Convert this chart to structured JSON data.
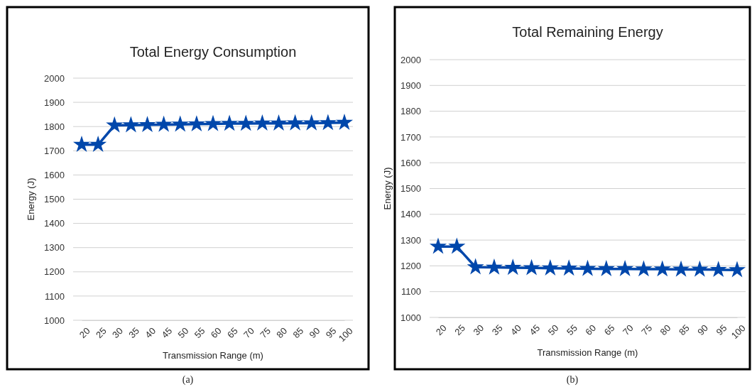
{
  "chart_data": [
    {
      "type": "line",
      "title": "Total Energy Consumption",
      "xlabel": "Transmission Range (m)",
      "ylabel": "Energy (J)",
      "annotations": [
        "(a)"
      ],
      "categories": [
        "20",
        "25",
        "30",
        "35",
        "40",
        "45",
        "50",
        "55",
        "60",
        "65",
        "70",
        "75",
        "80",
        "85",
        "90",
        "95",
        "100"
      ],
      "series": [
        {
          "color": "#0047ab",
          "values": [
            1725,
            1725,
            1805,
            1806,
            1807,
            1808,
            1809,
            1810,
            1811,
            1812,
            1812,
            1813,
            1813,
            1814,
            1814,
            1815,
            1816
          ]
        }
      ],
      "ylim": [
        1000,
        2000
      ],
      "yticks": [
        1000,
        1100,
        1200,
        1300,
        1400,
        1500,
        1600,
        1700,
        1800,
        1900,
        2000
      ],
      "grid": "y",
      "marker": "star",
      "line_style": "solid"
    },
    {
      "type": "line",
      "title": "Total Remaining Energy",
      "xlabel": "Transmission Range (m)",
      "ylabel": "Energy (J)",
      "annotations": [
        "(b)"
      ],
      "categories": [
        "20",
        "25",
        "30",
        "35",
        "40",
        "45",
        "50",
        "55",
        "60",
        "65",
        "70",
        "75",
        "80",
        "85",
        "90",
        "95",
        "100"
      ],
      "series": [
        {
          "color": "#0047ab",
          "values": [
            1275,
            1275,
            1195,
            1194,
            1193,
            1192,
            1191,
            1190,
            1189,
            1188,
            1188,
            1187,
            1187,
            1186,
            1186,
            1185,
            1184
          ]
        }
      ],
      "ylim": [
        1000,
        2000
      ],
      "yticks": [
        1000,
        1100,
        1200,
        1300,
        1400,
        1500,
        1600,
        1700,
        1800,
        1900,
        2000
      ],
      "grid": "y",
      "marker": "star",
      "line_style": "solid"
    }
  ]
}
